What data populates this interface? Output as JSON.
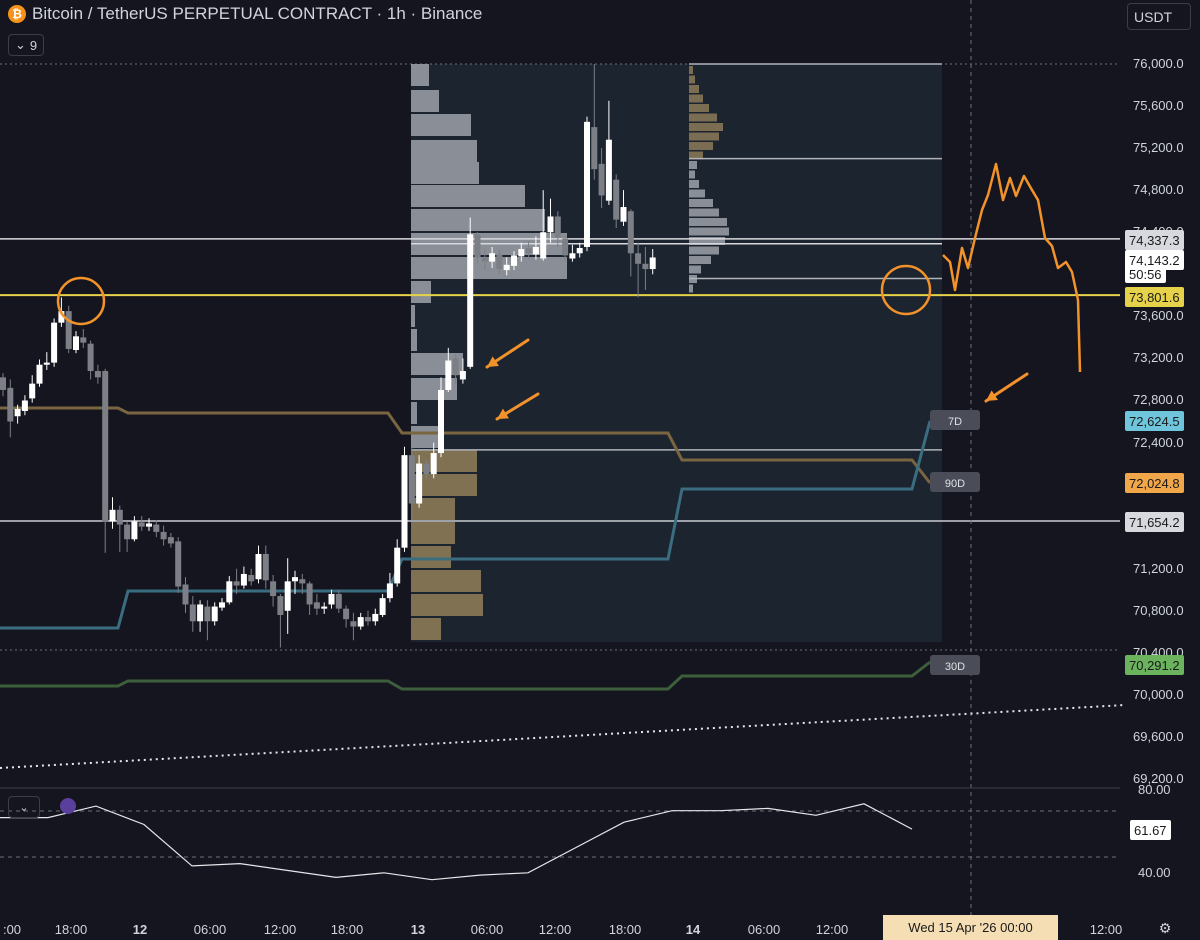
{
  "header": {
    "title": "Bitcoin / TetherUS PERPETUAL CONTRACT · 1h · Binance",
    "logo_glyph": "₿",
    "indicator_toggle_count": "9",
    "currency": "USDT"
  },
  "colors": {
    "background": "#14151f",
    "candle_up": "#ffffff",
    "candle_down": "#7d7f86",
    "ma_7d": "#3b6d80",
    "ma_30d": "#3c5e3a",
    "ma_90d": "#7a6540",
    "level_73801": "#e6d24a",
    "annotation": "#f2922b",
    "volume_profile": "#9ea1a8",
    "volume_profile_value_area": "#8c7a58"
  },
  "price_axis": {
    "ticks": [
      "76,000.0",
      "75,600.0",
      "75,200.0",
      "74,800.0",
      "74,400.0",
      "73,600.0",
      "73,200.0",
      "72,800.0",
      "72,400.0",
      "71,200.0",
      "70,800.0",
      "70,400.0",
      "70,000.0",
      "69,600.0",
      "69,200.0"
    ],
    "price_tags": [
      {
        "label": "74,337.3",
        "kind": "level"
      },
      {
        "label": "74,143.2",
        "kind": "last"
      },
      {
        "label": "50:56",
        "kind": "countdown"
      },
      {
        "label": "73,801.6",
        "kind": "yellow"
      },
      {
        "label": "72,624.5",
        "kind": "ma7"
      },
      {
        "label": "72,024.8",
        "kind": "ma90"
      },
      {
        "label": "71,654.2",
        "kind": "level"
      },
      {
        "label": "70,291.2",
        "kind": "ma30"
      }
    ]
  },
  "ma_labels": {
    "ma7": "7D",
    "ma90": "90D",
    "ma30": "30D"
  },
  "time_axis": {
    "labels": [
      ":00",
      "18:00",
      "12",
      "06:00",
      "12:00",
      "18:00",
      "13",
      "06:00",
      "12:00",
      "18:00",
      "14",
      "06:00",
      "12:00",
      "12:00"
    ],
    "crosshair_date": "Wed 15 Apr '26   00:00"
  },
  "oscillator": {
    "ticks": [
      "80.00",
      "40.00"
    ],
    "value": "61.67",
    "values": [
      73,
      73,
      78,
      70,
      52,
      53,
      50,
      47,
      49,
      46,
      48,
      49,
      60,
      71,
      76,
      76,
      77,
      74,
      79,
      68
    ]
  },
  "chart_data": {
    "type": "candlestick",
    "title": "Bitcoin / TetherUS PERPETUAL CONTRACT · 1h · Binance",
    "ylim": [
      69000,
      76200
    ],
    "levels": [
      76000,
      74337.3,
      73801.6,
      72624.5,
      72024.8,
      71654.2,
      70291.2
    ],
    "candles": [
      {
        "o": 73020,
        "c": 72900,
        "h": 73060,
        "l": 72840
      },
      {
        "o": 72920,
        "c": 72600,
        "h": 73000,
        "l": 72450
      },
      {
        "o": 72650,
        "c": 72720,
        "h": 72760,
        "l": 72580
      },
      {
        "o": 72700,
        "c": 72800,
        "h": 72850,
        "l": 72660
      },
      {
        "o": 72820,
        "c": 72960,
        "h": 73040,
        "l": 72780
      },
      {
        "o": 72960,
        "c": 73140,
        "h": 73190,
        "l": 72930
      },
      {
        "o": 73140,
        "c": 73160,
        "h": 73260,
        "l": 73090
      },
      {
        "o": 73160,
        "c": 73540,
        "h": 73580,
        "l": 73120
      },
      {
        "o": 73540,
        "c": 73650,
        "h": 73780,
        "l": 73500
      },
      {
        "o": 73650,
        "c": 73290,
        "h": 73700,
        "l": 73250
      },
      {
        "o": 73280,
        "c": 73410,
        "h": 73460,
        "l": 73250
      },
      {
        "o": 73400,
        "c": 73350,
        "h": 73480,
        "l": 73300
      },
      {
        "o": 73340,
        "c": 73080,
        "h": 73370,
        "l": 73000
      },
      {
        "o": 73080,
        "c": 73020,
        "h": 73140,
        "l": 72960
      },
      {
        "o": 73080,
        "c": 71650,
        "h": 73100,
        "l": 71350
      },
      {
        "o": 71650,
        "c": 71760,
        "h": 71880,
        "l": 71580
      },
      {
        "o": 71760,
        "c": 71620,
        "h": 71800,
        "l": 71360
      },
      {
        "o": 71620,
        "c": 71480,
        "h": 71650,
        "l": 71360
      },
      {
        "o": 71480,
        "c": 71650,
        "h": 71700,
        "l": 71460
      },
      {
        "o": 71640,
        "c": 71600,
        "h": 71700,
        "l": 71560
      },
      {
        "o": 71600,
        "c": 71630,
        "h": 71680,
        "l": 71560
      },
      {
        "o": 71620,
        "c": 71550,
        "h": 71660,
        "l": 71500
      },
      {
        "o": 71550,
        "c": 71480,
        "h": 71610,
        "l": 71420
      },
      {
        "o": 71500,
        "c": 71440,
        "h": 71540,
        "l": 71400
      },
      {
        "o": 71460,
        "c": 71030,
        "h": 71500,
        "l": 70970
      },
      {
        "o": 71050,
        "c": 70860,
        "h": 71120,
        "l": 70780
      },
      {
        "o": 70860,
        "c": 70700,
        "h": 70940,
        "l": 70600
      },
      {
        "o": 70700,
        "c": 70860,
        "h": 70900,
        "l": 70600
      },
      {
        "o": 70840,
        "c": 70700,
        "h": 70900,
        "l": 70520
      },
      {
        "o": 70700,
        "c": 70840,
        "h": 70880,
        "l": 70660
      },
      {
        "o": 70830,
        "c": 70880,
        "h": 70920,
        "l": 70800
      },
      {
        "o": 70880,
        "c": 71080,
        "h": 71130,
        "l": 70860
      },
      {
        "o": 71080,
        "c": 71040,
        "h": 71200,
        "l": 70960
      },
      {
        "o": 71040,
        "c": 71150,
        "h": 71220,
        "l": 71010
      },
      {
        "o": 71140,
        "c": 71080,
        "h": 71200,
        "l": 71040
      },
      {
        "o": 71100,
        "c": 71340,
        "h": 71420,
        "l": 71060
      },
      {
        "o": 71340,
        "c": 71090,
        "h": 71420,
        "l": 71010
      },
      {
        "o": 71080,
        "c": 70940,
        "h": 71140,
        "l": 70840
      },
      {
        "o": 70940,
        "c": 70760,
        "h": 70960,
        "l": 70450
      },
      {
        "o": 70800,
        "c": 71080,
        "h": 71300,
        "l": 70580
      },
      {
        "o": 71080,
        "c": 71120,
        "h": 71180,
        "l": 70960
      },
      {
        "o": 71100,
        "c": 71060,
        "h": 71150,
        "l": 70960
      },
      {
        "o": 71060,
        "c": 70860,
        "h": 71080,
        "l": 70760
      },
      {
        "o": 70880,
        "c": 70820,
        "h": 70960,
        "l": 70760
      },
      {
        "o": 70820,
        "c": 70840,
        "h": 70880,
        "l": 70770
      },
      {
        "o": 70860,
        "c": 70960,
        "h": 71000,
        "l": 70820
      },
      {
        "o": 70960,
        "c": 70820,
        "h": 71000,
        "l": 70780
      },
      {
        "o": 70820,
        "c": 70720,
        "h": 70850,
        "l": 70640
      },
      {
        "o": 70700,
        "c": 70650,
        "h": 70780,
        "l": 70520
      },
      {
        "o": 70650,
        "c": 70740,
        "h": 70780,
        "l": 70620
      },
      {
        "o": 70740,
        "c": 70700,
        "h": 70800,
        "l": 70660
      },
      {
        "o": 70700,
        "c": 70770,
        "h": 70820,
        "l": 70660
      },
      {
        "o": 70760,
        "c": 70920,
        "h": 70960,
        "l": 70740
      },
      {
        "o": 70920,
        "c": 71060,
        "h": 71160,
        "l": 70880
      },
      {
        "o": 71060,
        "c": 71400,
        "h": 71480,
        "l": 71030
      },
      {
        "o": 71400,
        "c": 72280,
        "h": 72360,
        "l": 71360
      },
      {
        "o": 72280,
        "c": 71820,
        "h": 72350,
        "l": 71660
      },
      {
        "o": 71820,
        "c": 72200,
        "h": 72280,
        "l": 71780
      },
      {
        "o": 72200,
        "c": 72100,
        "h": 72240,
        "l": 72060
      },
      {
        "o": 72100,
        "c": 72300,
        "h": 72400,
        "l": 72060
      },
      {
        "o": 72300,
        "c": 72900,
        "h": 73020,
        "l": 72260
      },
      {
        "o": 72900,
        "c": 73180,
        "h": 73300,
        "l": 72880
      },
      {
        "o": 73200,
        "c": 73040,
        "h": 73240,
        "l": 72960
      },
      {
        "o": 73000,
        "c": 73080,
        "h": 73200,
        "l": 72960
      },
      {
        "o": 73120,
        "c": 74380,
        "h": 74540,
        "l": 73100
      },
      {
        "o": 74380,
        "c": 74160,
        "h": 74400,
        "l": 74100
      },
      {
        "o": 74160,
        "c": 74120,
        "h": 74240,
        "l": 74040
      },
      {
        "o": 74120,
        "c": 74200,
        "h": 74260,
        "l": 74060
      },
      {
        "o": 74190,
        "c": 74050,
        "h": 74230,
        "l": 74000
      },
      {
        "o": 74040,
        "c": 74090,
        "h": 74160,
        "l": 73990
      },
      {
        "o": 74080,
        "c": 74180,
        "h": 74220,
        "l": 74040
      },
      {
        "o": 74170,
        "c": 74240,
        "h": 74300,
        "l": 74120
      },
      {
        "o": 74250,
        "c": 74200,
        "h": 74320,
        "l": 74150
      },
      {
        "o": 74190,
        "c": 74260,
        "h": 74360,
        "l": 74140
      },
      {
        "o": 74150,
        "c": 74400,
        "h": 74800,
        "l": 74130
      },
      {
        "o": 74400,
        "c": 74550,
        "h": 74720,
        "l": 74300
      },
      {
        "o": 74550,
        "c": 74350,
        "h": 74600,
        "l": 74260
      },
      {
        "o": 74340,
        "c": 74180,
        "h": 74360,
        "l": 74130
      },
      {
        "o": 74150,
        "c": 74200,
        "h": 74280,
        "l": 74120
      },
      {
        "o": 74200,
        "c": 74250,
        "h": 74300,
        "l": 74160
      },
      {
        "o": 74260,
        "c": 75450,
        "h": 75500,
        "l": 74220
      },
      {
        "o": 75400,
        "c": 75000,
        "h": 76000,
        "l": 74900
      },
      {
        "o": 75050,
        "c": 74750,
        "h": 75200,
        "l": 74630
      },
      {
        "o": 74700,
        "c": 75280,
        "h": 75650,
        "l": 74660
      },
      {
        "o": 74900,
        "c": 74520,
        "h": 74950,
        "l": 74440
      },
      {
        "o": 74500,
        "c": 74640,
        "h": 74800,
        "l": 74460
      },
      {
        "o": 74600,
        "c": 74200,
        "h": 74620,
        "l": 73980
      },
      {
        "o": 74200,
        "c": 74100,
        "h": 74300,
        "l": 73780
      },
      {
        "o": 74100,
        "c": 74050,
        "h": 74260,
        "l": 73850
      },
      {
        "o": 74050,
        "c": 74160,
        "h": 74240,
        "l": 74000
      }
    ]
  }
}
